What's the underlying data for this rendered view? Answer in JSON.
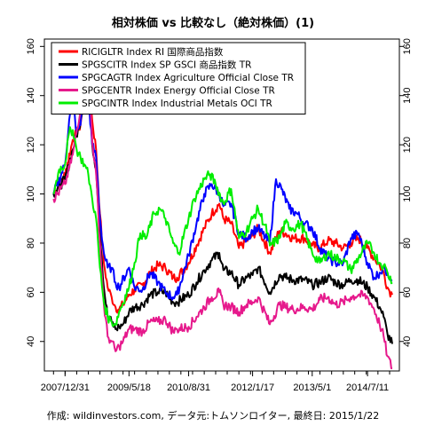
{
  "chart_data": {
    "type": "line",
    "title": "相対株価 vs 比較なし（絶対株価）(1)",
    "caption": "作成: wildinvestors.com, データ元:トムソンロイター, 最終日: 2015/1/22",
    "xlabel": "",
    "ylabel": "",
    "x_ticks": [
      "2007/12/31",
      "2009/5/18",
      "2010/8/31",
      "2012/1/17",
      "2013/5/1",
      "2014/7/11"
    ],
    "x_range": [
      "2007/09/15",
      "2015/01/22"
    ],
    "ylim": [
      28,
      163
    ],
    "y_ticks": [
      40,
      60,
      80,
      100,
      120,
      140,
      160
    ],
    "y_axis_right": true,
    "grid": false,
    "legend_position": "top-left",
    "series": [
      {
        "name": "RICIGLTR Index RI 国際商品指数",
        "color": "#ff0000",
        "points": [
          [
            "2007/10/01",
            100
          ],
          [
            "2007/12/31",
            108
          ],
          [
            "2008/03/01",
            122
          ],
          [
            "2008/05/01",
            128
          ],
          [
            "2008/06/01",
            142
          ],
          [
            "2008/07/01",
            150
          ],
          [
            "2008/08/01",
            130
          ],
          [
            "2008/09/01",
            118
          ],
          [
            "2008/10/01",
            92
          ],
          [
            "2008/11/01",
            72
          ],
          [
            "2008/12/01",
            62
          ],
          [
            "2009/01/01",
            58
          ],
          [
            "2009/02/01",
            54
          ],
          [
            "2009/03/01",
            53
          ],
          [
            "2009/04/01",
            55
          ],
          [
            "2009/05/18",
            59
          ],
          [
            "2009/07/01",
            61
          ],
          [
            "2009/09/01",
            63
          ],
          [
            "2009/11/01",
            68
          ],
          [
            "2010/01/01",
            71
          ],
          [
            "2010/03/01",
            70
          ],
          [
            "2010/05/01",
            66
          ],
          [
            "2010/06/01",
            66
          ],
          [
            "2010/08/31",
            72
          ],
          [
            "2010/11/01",
            79
          ],
          [
            "2011/01/01",
            86
          ],
          [
            "2011/03/01",
            92
          ],
          [
            "2011/04/30",
            96
          ],
          [
            "2011/06/01",
            90
          ],
          [
            "2011/08/01",
            88
          ],
          [
            "2011/10/01",
            78
          ],
          [
            "2011/12/01",
            81
          ],
          [
            "2012/01/17",
            83
          ],
          [
            "2012/03/01",
            86
          ],
          [
            "2012/06/01",
            76
          ],
          [
            "2012/08/15",
            85
          ],
          [
            "2012/10/01",
            84
          ],
          [
            "2012/12/01",
            82
          ],
          [
            "2013/03/01",
            82
          ],
          [
            "2013/05/01",
            79
          ],
          [
            "2013/07/01",
            78
          ],
          [
            "2013/09/01",
            81
          ],
          [
            "2013/11/01",
            80
          ],
          [
            "2014/01/01",
            78
          ],
          [
            "2014/03/01",
            80
          ],
          [
            "2014/05/01",
            82
          ],
          [
            "2014/07/11",
            78
          ],
          [
            "2014/09/01",
            74
          ],
          [
            "2014/10/15",
            71
          ],
          [
            "2014/11/15",
            68
          ],
          [
            "2014/12/15",
            62
          ],
          [
            "2015/01/22",
            59
          ]
        ]
      },
      {
        "name": "SPGSCITR Index SP GSCI 商品指数 TR",
        "color": "#000000",
        "points": [
          [
            "2007/10/01",
            100
          ],
          [
            "2007/12/31",
            106
          ],
          [
            "2008/03/01",
            118
          ],
          [
            "2008/05/01",
            130
          ],
          [
            "2008/06/01",
            140
          ],
          [
            "2008/07/01",
            147
          ],
          [
            "2008/08/01",
            120
          ],
          [
            "2008/09/01",
            110
          ],
          [
            "2008/10/01",
            85
          ],
          [
            "2008/11/01",
            62
          ],
          [
            "2008/12/01",
            50
          ],
          [
            "2009/01/01",
            48
          ],
          [
            "2009/02/01",
            45
          ],
          [
            "2009/03/01",
            46
          ],
          [
            "2009/04/01",
            47
          ],
          [
            "2009/05/18",
            52
          ],
          [
            "2009/07/01",
            54
          ],
          [
            "2009/09/01",
            55
          ],
          [
            "2009/11/01",
            59
          ],
          [
            "2010/01/01",
            60
          ],
          [
            "2010/03/01",
            60
          ],
          [
            "2010/05/01",
            56
          ],
          [
            "2010/06/01",
            56
          ],
          [
            "2010/08/31",
            59
          ],
          [
            "2010/11/01",
            64
          ],
          [
            "2011/01/01",
            69
          ],
          [
            "2011/03/01",
            73
          ],
          [
            "2011/04/30",
            76
          ],
          [
            "2011/06/01",
            69
          ],
          [
            "2011/08/01",
            68
          ],
          [
            "2011/10/01",
            63
          ],
          [
            "2011/12/01",
            66
          ],
          [
            "2012/01/17",
            67
          ],
          [
            "2012/03/01",
            70
          ],
          [
            "2012/06/01",
            60
          ],
          [
            "2012/08/15",
            67
          ],
          [
            "2012/10/01",
            66
          ],
          [
            "2012/12/01",
            65
          ],
          [
            "2013/03/01",
            65
          ],
          [
            "2013/05/01",
            63
          ],
          [
            "2013/07/01",
            64
          ],
          [
            "2013/09/01",
            66
          ],
          [
            "2013/11/01",
            64
          ],
          [
            "2014/01/01",
            63
          ],
          [
            "2014/03/01",
            65
          ],
          [
            "2014/05/01",
            65
          ],
          [
            "2014/07/11",
            62
          ],
          [
            "2014/09/01",
            58
          ],
          [
            "2014/10/15",
            54
          ],
          [
            "2014/11/15",
            50
          ],
          [
            "2014/12/15",
            43
          ],
          [
            "2015/01/22",
            39
          ]
        ]
      },
      {
        "name": "SPGCAGTR Index Agriculture Official Close TR",
        "color": "#0000ff",
        "points": [
          [
            "2007/10/01",
            100
          ],
          [
            "2007/12/31",
            112
          ],
          [
            "2008/02/01",
            130
          ],
          [
            "2008/03/01",
            138
          ],
          [
            "2008/04/01",
            125
          ],
          [
            "2008/05/01",
            128
          ],
          [
            "2008/06/01",
            150
          ],
          [
            "2008/07/01",
            140
          ],
          [
            "2008/08/01",
            120
          ],
          [
            "2008/09/01",
            115
          ],
          [
            "2008/10/01",
            90
          ],
          [
            "2008/11/01",
            76
          ],
          [
            "2008/12/01",
            70
          ],
          [
            "2009/01/01",
            70
          ],
          [
            "2009/02/01",
            64
          ],
          [
            "2009/03/01",
            62
          ],
          [
            "2009/05/18",
            70
          ],
          [
            "2009/07/01",
            62
          ],
          [
            "2009/09/01",
            61
          ],
          [
            "2009/11/01",
            68
          ],
          [
            "2010/01/01",
            64
          ],
          [
            "2010/03/01",
            60
          ],
          [
            "2010/05/01",
            58
          ],
          [
            "2010/06/01",
            59
          ],
          [
            "2010/08/31",
            75
          ],
          [
            "2010/11/01",
            88
          ],
          [
            "2011/01/01",
            100
          ],
          [
            "2011/03/01",
            104
          ],
          [
            "2011/04/30",
            100
          ],
          [
            "2011/06/01",
            95
          ],
          [
            "2011/08/01",
            96
          ],
          [
            "2011/10/01",
            84
          ],
          [
            "2011/12/01",
            82
          ],
          [
            "2012/01/17",
            85
          ],
          [
            "2012/03/01",
            86
          ],
          [
            "2012/06/01",
            80
          ],
          [
            "2012/07/20",
            106
          ],
          [
            "2012/09/01",
            102
          ],
          [
            "2012/11/01",
            94
          ],
          [
            "2013/01/01",
            92
          ],
          [
            "2013/03/01",
            88
          ],
          [
            "2013/05/01",
            86
          ],
          [
            "2013/07/01",
            78
          ],
          [
            "2013/09/01",
            74
          ],
          [
            "2013/11/01",
            72
          ],
          [
            "2014/01/01",
            72
          ],
          [
            "2014/03/01",
            82
          ],
          [
            "2014/05/01",
            84
          ],
          [
            "2014/07/11",
            72
          ],
          [
            "2014/09/01",
            66
          ],
          [
            "2014/10/15",
            68
          ],
          [
            "2014/11/15",
            70
          ],
          [
            "2014/12/15",
            68
          ],
          [
            "2015/01/22",
            65
          ]
        ]
      },
      {
        "name": "SPGCENTR Index Energy Official Close TR",
        "color": "#e6198c",
        "points": [
          [
            "2007/10/01",
            98
          ],
          [
            "2007/12/31",
            104
          ],
          [
            "2008/03/01",
            116
          ],
          [
            "2008/05/01",
            135
          ],
          [
            "2008/06/01",
            148
          ],
          [
            "2008/07/01",
            152
          ],
          [
            "2008/08/01",
            122
          ],
          [
            "2008/09/01",
            108
          ],
          [
            "2008/10/01",
            80
          ],
          [
            "2008/11/01",
            55
          ],
          [
            "2008/12/01",
            42
          ],
          [
            "2009/01/01",
            40
          ],
          [
            "2009/02/01",
            36
          ],
          [
            "2009/03/01",
            38
          ],
          [
            "2009/04/01",
            40
          ],
          [
            "2009/05/18",
            45
          ],
          [
            "2009/07/01",
            45
          ],
          [
            "2009/09/01",
            44
          ],
          [
            "2009/11/01",
            48
          ],
          [
            "2010/01/01",
            48
          ],
          [
            "2010/03/01",
            49
          ],
          [
            "2010/05/01",
            44
          ],
          [
            "2010/06/01",
            45
          ],
          [
            "2010/08/31",
            46
          ],
          [
            "2010/11/01",
            50
          ],
          [
            "2011/01/01",
            54
          ],
          [
            "2011/03/01",
            58
          ],
          [
            "2011/04/30",
            60
          ],
          [
            "2011/06/01",
            55
          ],
          [
            "2011/08/01",
            54
          ],
          [
            "2011/10/01",
            52
          ],
          [
            "2011/12/01",
            55
          ],
          [
            "2012/01/17",
            56
          ],
          [
            "2012/03/01",
            58
          ],
          [
            "2012/06/01",
            47
          ],
          [
            "2012/08/15",
            55
          ],
          [
            "2012/10/01",
            54
          ],
          [
            "2012/12/01",
            53
          ],
          [
            "2013/03/01",
            54
          ],
          [
            "2013/05/01",
            53
          ],
          [
            "2013/07/01",
            57
          ],
          [
            "2013/09/01",
            58
          ],
          [
            "2013/11/01",
            55
          ],
          [
            "2014/01/01",
            56
          ],
          [
            "2014/03/01",
            58
          ],
          [
            "2014/05/01",
            59
          ],
          [
            "2014/07/11",
            58
          ],
          [
            "2014/09/01",
            53
          ],
          [
            "2014/10/15",
            47
          ],
          [
            "2014/11/15",
            42
          ],
          [
            "2014/12/15",
            34
          ],
          [
            "2015/01/22",
            29
          ]
        ]
      },
      {
        "name": "SPGCINTR Index Industrial Metals OCI TR",
        "color": "#00ee00",
        "points": [
          [
            "2007/10/01",
            100
          ],
          [
            "2007/11/15",
            110
          ],
          [
            "2007/12/31",
            112
          ],
          [
            "2008/02/01",
            125
          ],
          [
            "2008/03/01",
            126
          ],
          [
            "2008/04/01",
            118
          ],
          [
            "2008/05/01",
            115
          ],
          [
            "2008/06/01",
            112
          ],
          [
            "2008/07/01",
            108
          ],
          [
            "2008/08/01",
            98
          ],
          [
            "2008/09/01",
            90
          ],
          [
            "2008/10/01",
            70
          ],
          [
            "2008/11/01",
            56
          ],
          [
            "2008/12/01",
            50
          ],
          [
            "2009/01/01",
            48
          ],
          [
            "2009/02/01",
            47
          ],
          [
            "2009/03/01",
            52
          ],
          [
            "2009/05/18",
            62
          ],
          [
            "2009/07/01",
            72
          ],
          [
            "2009/08/15",
            84
          ],
          [
            "2009/10/01",
            82
          ],
          [
            "2009/12/01",
            92
          ],
          [
            "2010/01/15",
            94
          ],
          [
            "2010/03/01",
            90
          ],
          [
            "2010/05/01",
            80
          ],
          [
            "2010/06/15",
            76
          ],
          [
            "2010/08/31",
            90
          ],
          [
            "2010/10/15",
            98
          ],
          [
            "2011/01/01",
            106
          ],
          [
            "2011/02/15",
            108
          ],
          [
            "2011/04/01",
            104
          ],
          [
            "2011/06/01",
            96
          ],
          [
            "2011/08/01",
            102
          ],
          [
            "2011/10/01",
            82
          ],
          [
            "2011/12/01",
            85
          ],
          [
            "2012/01/17",
            90
          ],
          [
            "2012/03/01",
            94
          ],
          [
            "2012/05/15",
            84
          ],
          [
            "2012/06/01",
            79
          ],
          [
            "2012/08/15",
            82
          ],
          [
            "2012/10/01",
            88
          ],
          [
            "2012/12/01",
            86
          ],
          [
            "2013/02/01",
            88
          ],
          [
            "2013/05/01",
            76
          ],
          [
            "2013/07/01",
            72
          ],
          [
            "2013/09/01",
            76
          ],
          [
            "2013/11/01",
            74
          ],
          [
            "2014/01/01",
            73
          ],
          [
            "2014/03/01",
            69
          ],
          [
            "2014/05/01",
            74
          ],
          [
            "2014/07/11",
            80
          ],
          [
            "2014/09/01",
            76
          ],
          [
            "2014/10/15",
            72
          ],
          [
            "2014/11/15",
            71
          ],
          [
            "2014/12/15",
            68
          ],
          [
            "2015/01/22",
            64
          ]
        ]
      }
    ]
  }
}
